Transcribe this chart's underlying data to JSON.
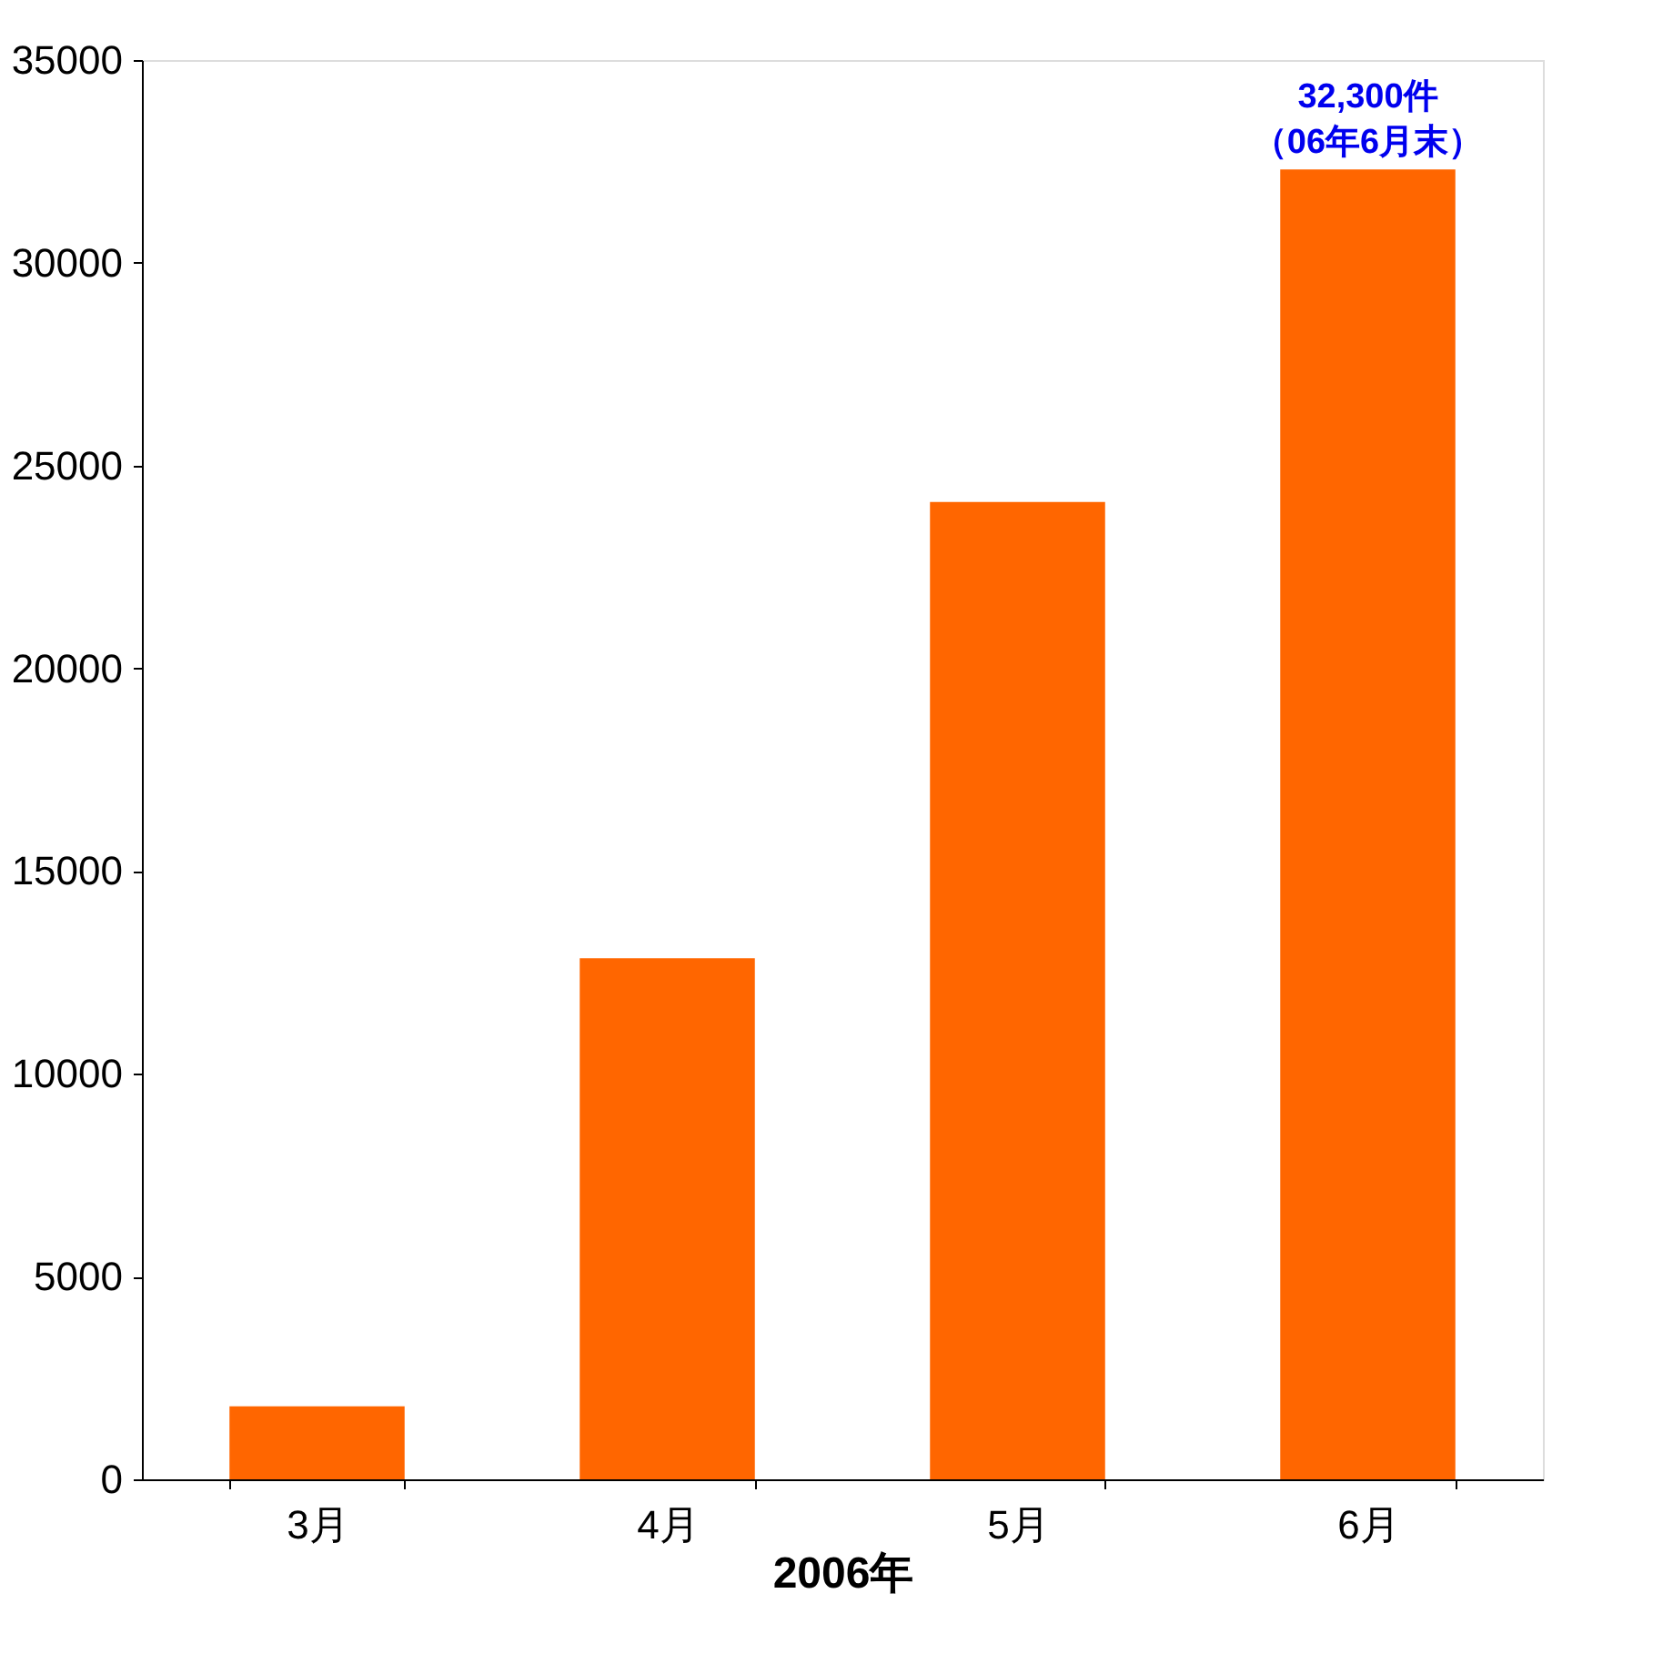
{
  "chart_data": {
    "type": "bar",
    "categories": [
      "3月",
      "4月",
      "5月",
      "6月"
    ],
    "values": [
      1800,
      12850,
      24100,
      32300
    ],
    "color": "#ff6600",
    "xlabel": "2006年",
    "ylim": [
      0,
      35000
    ],
    "yticks": [
      0,
      5000,
      10000,
      15000,
      20000,
      25000,
      30000,
      35000
    ],
    "grid": false,
    "annotations": [
      {
        "text": "32,300件",
        "x": "6月",
        "y": 32300
      },
      {
        "text": "（06年6月末）",
        "x": "6月",
        "y": 32300
      }
    ]
  }
}
